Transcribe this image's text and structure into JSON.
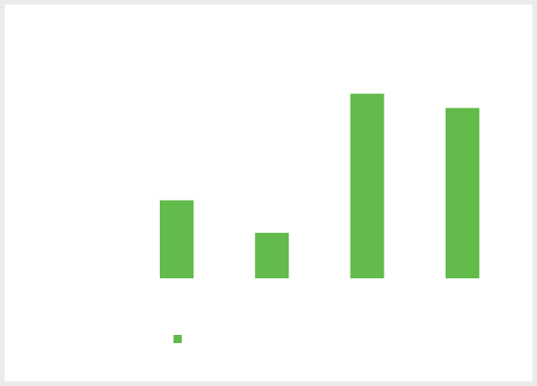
{
  "chart_data": {
    "type": "bar",
    "categories": [
      null,
      null,
      null,
      null
    ],
    "series": [
      {
        "color": "#62bb4a",
        "values": [
          30,
          17.5,
          71,
          65.5
        ]
      }
    ],
    "ylim": [
      0,
      100
    ],
    "legend": "bottom-left"
  }
}
